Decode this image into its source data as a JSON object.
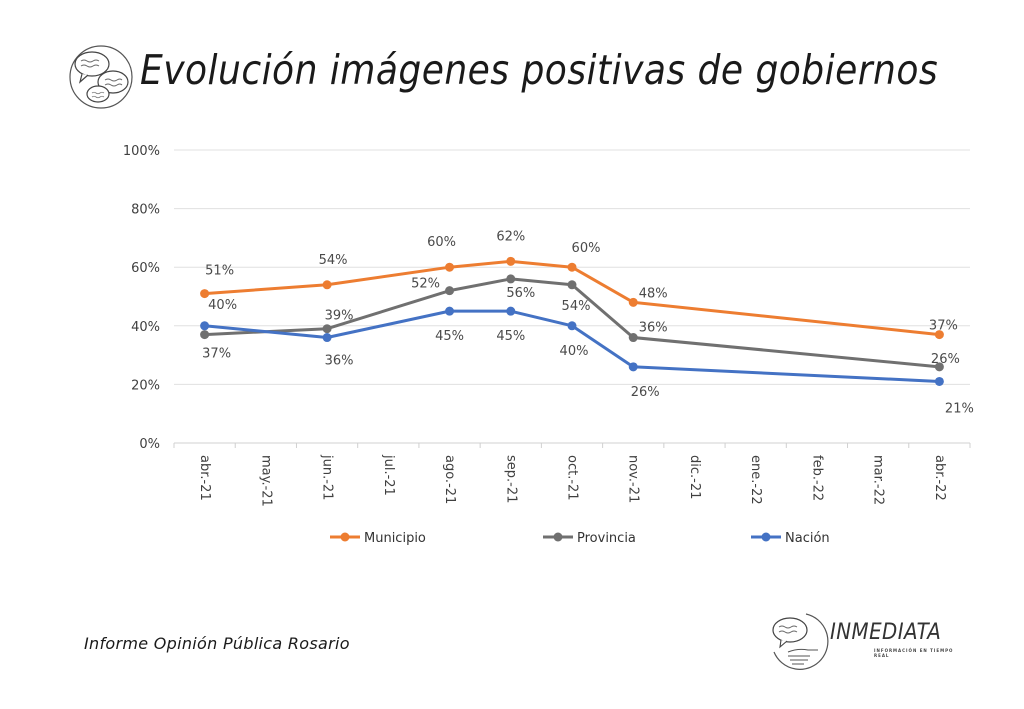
{
  "header": {
    "title": "Evolución imágenes positivas de gobiernos",
    "logo_icon": "speech-bubbles-icon"
  },
  "footer": {
    "report_name": "Informe Opinión Pública Rosario",
    "brand_name": "INMEDIATA",
    "brand_tagline": "INFORMACIÓN EN TIEMPO REAL",
    "brand_icon": "hand-speech-bubble-icon"
  },
  "chart_data": {
    "type": "line",
    "title": "Evolución imágenes positivas de gobiernos",
    "xlabel": "",
    "ylabel": "",
    "categories": [
      "abr.-21",
      "may.-21",
      "jun.-21",
      "jul.-21",
      "ago.-21",
      "sep.-21",
      "oct.-21",
      "nov.-21",
      "dic.-21",
      "ene.-22",
      "feb.-22",
      "mar.-22",
      "abr.-22"
    ],
    "ylim": [
      0,
      100
    ],
    "yticks": [
      "0%",
      "20%",
      "40%",
      "60%",
      "80%",
      "100%"
    ],
    "ytick_values": [
      0,
      20,
      40,
      60,
      80,
      100
    ],
    "grid": true,
    "legend_position": "bottom",
    "series": [
      {
        "name": "Municipio",
        "color": "#ED7D31",
        "points": [
          {
            "x": "abr.-21",
            "y": 51
          },
          {
            "x": "jun.-21",
            "y": 54
          },
          {
            "x": "ago.-21",
            "y": 60
          },
          {
            "x": "sep.-21",
            "y": 62
          },
          {
            "x": "oct.-21",
            "y": 60
          },
          {
            "x": "nov.-21",
            "y": 48
          },
          {
            "x": "abr.-22",
            "y": 37
          }
        ],
        "labels": [
          "51%",
          "54%",
          "60%",
          "62%",
          "60%",
          "48%",
          "37%"
        ]
      },
      {
        "name": "Provincia",
        "color": "#707070",
        "points": [
          {
            "x": "abr.-21",
            "y": 37
          },
          {
            "x": "jun.-21",
            "y": 39
          },
          {
            "x": "ago.-21",
            "y": 52
          },
          {
            "x": "sep.-21",
            "y": 56
          },
          {
            "x": "oct.-21",
            "y": 54
          },
          {
            "x": "nov.-21",
            "y": 36
          },
          {
            "x": "abr.-22",
            "y": 26
          }
        ],
        "labels": [
          "37%",
          "39%",
          "52%",
          "56%",
          "54%",
          "36%",
          "26%"
        ]
      },
      {
        "name": "Nación",
        "color": "#4472C4",
        "points": [
          {
            "x": "abr.-21",
            "y": 40
          },
          {
            "x": "jun.-21",
            "y": 36
          },
          {
            "x": "ago.-21",
            "y": 45
          },
          {
            "x": "sep.-21",
            "y": 45
          },
          {
            "x": "oct.-21",
            "y": 40
          },
          {
            "x": "nov.-21",
            "y": 26
          },
          {
            "x": "abr.-22",
            "y": 21
          }
        ],
        "labels": [
          "40%",
          "36%",
          "45%",
          "45%",
          "40%",
          "26%",
          "21%"
        ]
      }
    ]
  }
}
